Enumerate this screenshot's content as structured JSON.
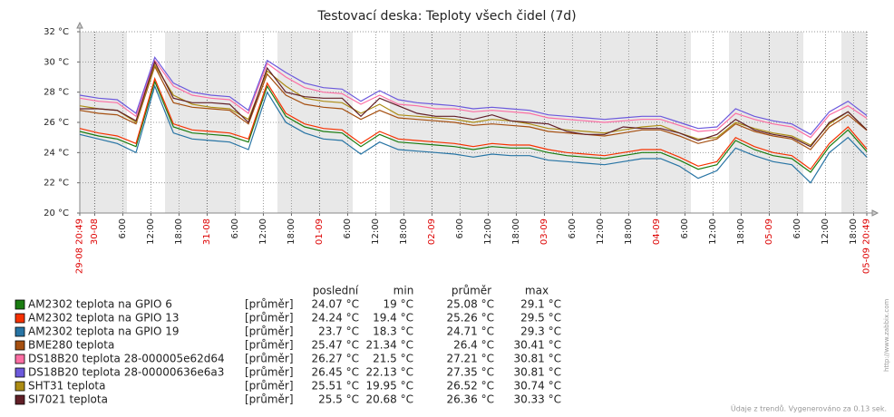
{
  "chart_data": {
    "type": "line",
    "title": "Testovací deska: Teploty všech čidel (7d)",
    "x": [
      "29-08 20:49",
      "30-08 00:49",
      "30-08 04:49",
      "30-08 08:49",
      "30-08 12:49",
      "30-08 16:49",
      "30-08 20:49",
      "31-08 00:49",
      "31-08 04:49",
      "31-08 08:49",
      "31-08 12:49",
      "31-08 16:49",
      "31-08 20:49",
      "01-09 00:49",
      "01-09 04:49",
      "01-09 08:49",
      "01-09 12:49",
      "01-09 16:49",
      "01-09 20:49",
      "02-09 00:49",
      "02-09 04:49",
      "02-09 08:49",
      "02-09 12:49",
      "02-09 16:49",
      "02-09 20:49",
      "03-09 00:49",
      "03-09 04:49",
      "03-09 08:49",
      "03-09 12:49",
      "03-09 16:49",
      "03-09 20:49",
      "04-09 00:49",
      "04-09 04:49",
      "04-09 08:49",
      "04-09 12:49",
      "04-09 16:49",
      "04-09 20:49",
      "05-09 00:49",
      "05-09 04:49",
      "05-09 08:49",
      "05-09 12:49",
      "05-09 16:49",
      "05-09 20:49"
    ],
    "xlim": [
      "29-08 20:49",
      "05-09 20:49"
    ],
    "xticks": [
      "29-08 20:49",
      {
        "value": "30-08 00:00",
        "label": "30-08"
      },
      {
        "value": "30-08 06:00",
        "label": "6:00"
      },
      {
        "value": "30-08 12:00",
        "label": "12:00"
      },
      {
        "value": "30-08 18:00",
        "label": "18:00"
      },
      {
        "value": "31-08 00:00",
        "label": "31-08"
      },
      {
        "value": "31-08 06:00",
        "label": "6:00"
      },
      {
        "value": "31-08 12:00",
        "label": "12:00"
      },
      {
        "value": "31-08 18:00",
        "label": "18:00"
      },
      {
        "value": "01-09 00:00",
        "label": "01-09"
      },
      {
        "value": "01-09 06:00",
        "label": "6:00"
      },
      {
        "value": "01-09 12:00",
        "label": "12:00"
      },
      {
        "value": "01-09 18:00",
        "label": "18:00"
      },
      {
        "value": "02-09 00:00",
        "label": "02-09"
      },
      {
        "value": "02-09 06:00",
        "label": "6:00"
      },
      {
        "value": "02-09 12:00",
        "label": "12:00"
      },
      {
        "value": "02-09 18:00",
        "label": "18:00"
      },
      {
        "value": "03-09 00:00",
        "label": "03-09"
      },
      {
        "value": "03-09 06:00",
        "label": "6:00"
      },
      {
        "value": "03-09 12:00",
        "label": "12:00"
      },
      {
        "value": "03-09 18:00",
        "label": "18:00"
      },
      {
        "value": "04-09 00:00",
        "label": "04-09"
      },
      {
        "value": "04-09 06:00",
        "label": "6:00"
      },
      {
        "value": "04-09 12:00",
        "label": "12:00"
      },
      {
        "value": "04-09 18:00",
        "label": "18:00"
      },
      {
        "value": "05-09 00:00",
        "label": "05-09"
      },
      {
        "value": "05-09 06:00",
        "label": "6:00"
      },
      {
        "value": "05-09 12:00",
        "label": "12:00"
      },
      {
        "value": "05-09 18:00",
        "label": "18:00"
      },
      "05-09 20:49"
    ],
    "ylim": [
      20,
      32
    ],
    "yticks": [
      {
        "value": 20,
        "label": "20 °C"
      },
      {
        "value": 22,
        "label": "22 °C"
      },
      {
        "value": 24,
        "label": "24 °C"
      },
      {
        "value": 26,
        "label": "26 °C"
      },
      {
        "value": 28,
        "label": "28 °C"
      },
      {
        "value": 30,
        "label": "30 °C"
      },
      {
        "value": 32,
        "label": "32 °C"
      }
    ],
    "grid": true,
    "legend_columns": [
      "poslední",
      "min",
      "průměr",
      "max"
    ],
    "series": [
      {
        "name": "AM2302 teplota na GPIO 6",
        "color": "#1a7c11",
        "function": "[průměr]",
        "stats": [
          "24.07 °C",
          "19 °C",
          "25.08 °C",
          "29.1 °C"
        ],
        "values": [
          25.4,
          25.1,
          24.9,
          24.4,
          28.7,
          25.7,
          25.3,
          25.2,
          25.1,
          24.7,
          28.4,
          26.4,
          25.7,
          25.4,
          25.3,
          24.4,
          25.2,
          24.7,
          24.6,
          24.5,
          24.4,
          24.2,
          24.4,
          24.3,
          24.3,
          24.0,
          23.8,
          23.7,
          23.6,
          23.8,
          24.0,
          24.0,
          23.5,
          22.9,
          23.2,
          24.8,
          24.2,
          23.8,
          23.6,
          22.7,
          24.4,
          25.5,
          24.07
        ]
      },
      {
        "name": "AM2302 teplota na GPIO 13",
        "color": "#f63100",
        "function": "[průměr]",
        "stats": [
          "24.24 °C",
          "19.4 °C",
          "25.26 °C",
          "29.5 °C"
        ],
        "values": [
          25.6,
          25.3,
          25.1,
          24.6,
          28.9,
          25.9,
          25.5,
          25.4,
          25.3,
          24.9,
          28.6,
          26.6,
          25.9,
          25.6,
          25.5,
          24.6,
          25.4,
          24.9,
          24.8,
          24.7,
          24.6,
          24.4,
          24.6,
          24.5,
          24.5,
          24.2,
          24.0,
          23.9,
          23.8,
          24.0,
          24.2,
          24.2,
          23.7,
          23.1,
          23.4,
          25.0,
          24.4,
          24.0,
          23.8,
          22.9,
          24.6,
          25.7,
          24.24
        ]
      },
      {
        "name": "AM2302 teplota na GPIO 19",
        "color": "#2774a4",
        "function": "[průměr]",
        "stats": [
          "23.7 °C",
          "18.3 °C",
          "24.71 °C",
          "29.3 °C"
        ],
        "values": [
          25.2,
          24.9,
          24.6,
          24.0,
          28.4,
          25.3,
          24.9,
          24.8,
          24.7,
          24.2,
          28.0,
          26.0,
          25.3,
          24.9,
          24.8,
          23.9,
          24.7,
          24.2,
          24.1,
          24.0,
          23.9,
          23.7,
          23.9,
          23.8,
          23.8,
          23.5,
          23.4,
          23.3,
          23.2,
          23.4,
          23.6,
          23.6,
          23.1,
          22.3,
          22.8,
          24.3,
          23.8,
          23.4,
          23.2,
          22.0,
          24.0,
          25.0,
          23.7
        ]
      },
      {
        "name": "BME280 teplota",
        "color": "#a54f10",
        "function": "[průměr]",
        "stats": [
          "25.47 °C",
          "21.34 °C",
          "26.4 °C",
          "30.41 °C"
        ],
        "values": [
          26.8,
          26.6,
          26.5,
          25.9,
          29.7,
          27.3,
          27.0,
          26.9,
          26.8,
          25.9,
          29.2,
          27.8,
          27.2,
          27.0,
          26.9,
          26.2,
          26.8,
          26.3,
          26.2,
          26.1,
          26.0,
          25.8,
          25.9,
          25.8,
          25.7,
          25.4,
          25.3,
          25.2,
          25.1,
          25.3,
          25.5,
          25.5,
          25.1,
          24.6,
          24.9,
          25.9,
          25.4,
          25.1,
          24.9,
          24.2,
          25.7,
          26.5,
          25.47
        ]
      },
      {
        "name": "DS18B20 teplota 28-000005e62d64",
        "color": "#fc6ea3",
        "function": "[průměr]",
        "stats": [
          "26.27 °C",
          "21.5 °C",
          "27.21 °C",
          "30.81 °C"
        ],
        "values": [
          27.6,
          27.4,
          27.3,
          26.4,
          30.1,
          28.4,
          27.8,
          27.6,
          27.5,
          26.6,
          29.9,
          29.0,
          28.3,
          28.0,
          27.9,
          27.2,
          27.8,
          27.2,
          27.1,
          26.9,
          26.9,
          26.7,
          26.8,
          26.7,
          26.6,
          26.3,
          26.2,
          26.1,
          26.0,
          26.1,
          26.2,
          26.2,
          25.8,
          25.4,
          25.5,
          26.6,
          26.2,
          25.9,
          25.7,
          25.0,
          26.5,
          27.1,
          26.27
        ]
      },
      {
        "name": "DS18B20 teplota 28-00000636e6a3",
        "color": "#6c59dc",
        "function": "[průměr]",
        "stats": [
          "26.45 °C",
          "22.13 °C",
          "27.35 °C",
          "30.81 °C"
        ],
        "values": [
          27.8,
          27.6,
          27.5,
          26.6,
          30.3,
          28.6,
          28.0,
          27.8,
          27.7,
          26.8,
          30.1,
          29.3,
          28.6,
          28.3,
          28.2,
          27.4,
          28.1,
          27.5,
          27.3,
          27.2,
          27.1,
          26.9,
          27.0,
          26.9,
          26.8,
          26.5,
          26.4,
          26.3,
          26.2,
          26.3,
          26.4,
          26.4,
          26.0,
          25.6,
          25.7,
          26.9,
          26.4,
          26.1,
          25.9,
          25.2,
          26.7,
          27.4,
          26.45
        ]
      },
      {
        "name": "SHT31 teplota",
        "color": "#ac8c14",
        "function": "[průměr]",
        "stats": [
          "25.51 °C",
          "19.95 °C",
          "26.52 °C",
          "30.74 °C"
        ],
        "values": [
          27.1,
          26.9,
          26.8,
          26.0,
          29.8,
          27.8,
          27.2,
          27.0,
          26.9,
          26.2,
          29.4,
          28.4,
          27.6,
          27.4,
          27.3,
          26.6,
          27.2,
          26.5,
          26.4,
          26.3,
          26.2,
          26.0,
          26.2,
          26.1,
          25.9,
          25.6,
          25.5,
          25.4,
          25.3,
          25.5,
          25.7,
          25.8,
          25.3,
          24.9,
          25.0,
          26.0,
          25.6,
          25.3,
          25.1,
          24.5,
          25.9,
          26.7,
          25.51
        ]
      },
      {
        "name": "SI7021 teplota",
        "color": "#611f27",
        "function": "[průměr]",
        "stats": [
          "25.5 °C",
          "20.68 °C",
          "26.36 °C",
          "30.33 °C"
        ],
        "values": [
          26.9,
          26.9,
          26.8,
          26.1,
          30.0,
          27.6,
          27.3,
          27.3,
          27.2,
          26.0,
          29.6,
          28.0,
          27.7,
          27.6,
          27.6,
          26.4,
          27.6,
          27.1,
          26.6,
          26.4,
          26.4,
          26.2,
          26.5,
          26.1,
          26.0,
          25.9,
          25.4,
          25.2,
          25.2,
          25.7,
          25.6,
          25.6,
          25.3,
          24.8,
          25.2,
          26.2,
          25.5,
          25.2,
          25.0,
          24.4,
          26.0,
          26.7,
          25.5
        ]
      }
    ],
    "source_url": "http://www.zabbix.com",
    "footer": "Údaje z trendů. Vygenerováno za 0.13 sek."
  }
}
